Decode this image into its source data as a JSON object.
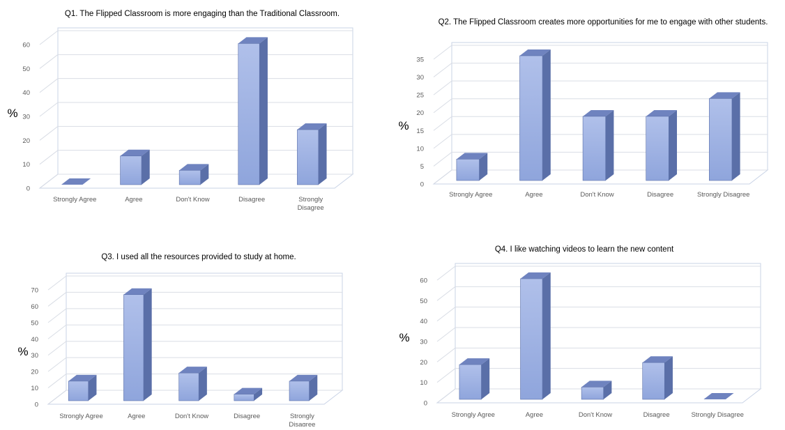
{
  "colors": {
    "bar_front": "#8fa5dc",
    "bar_front_light": "#b0c0ea",
    "bar_side": "#5a6fa8",
    "bar_top": "#6f83bf",
    "grid": "#d9dde5",
    "frame": "#c9d3e6",
    "text": "#595959",
    "title": "#222222"
  },
  "chart_data": [
    {
      "type": "bar",
      "title": "Q1. The Flipped Classroom is more engaging than the Traditional Classroom.",
      "ylabel": "%",
      "categories": [
        "Strongly Agree",
        "Agree",
        "Don't Know",
        "Disagree",
        "Strongly Disagree"
      ],
      "values": [
        0,
        12,
        6,
        59,
        23
      ],
      "ylim": [
        0,
        60
      ],
      "yticks": [
        0,
        10,
        20,
        30,
        40,
        50,
        60
      ],
      "grid": true,
      "three_d": true
    },
    {
      "type": "bar",
      "title": "Q2. The Flipped Classroom creates more opportunities for me to engage with other students.",
      "ylabel": "%",
      "categories": [
        "Strongly Agree",
        "Agree",
        "Don't Know",
        "Disagree",
        "Strongly Disagree"
      ],
      "values": [
        6,
        35,
        18,
        18,
        23
      ],
      "ylim": [
        0,
        35
      ],
      "yticks": [
        0,
        5,
        10,
        15,
        20,
        25,
        30,
        35
      ],
      "grid": true,
      "three_d": true
    },
    {
      "type": "bar",
      "title": "Q3. I used all the resources provided to study at home.",
      "ylabel": "%",
      "categories": [
        "Strongly Agree",
        "Agree",
        "Don't Know",
        "Disagree",
        "Strongly Disagree"
      ],
      "values": [
        12,
        65,
        17,
        4,
        12
      ],
      "ylim": [
        0,
        70
      ],
      "yticks": [
        0,
        10,
        20,
        30,
        40,
        50,
        60,
        70
      ],
      "grid": true,
      "three_d": true
    },
    {
      "type": "bar",
      "title": "Q4.  I like watching videos to learn the new content",
      "ylabel": "%",
      "categories": [
        "Strongly Agree",
        "Agree",
        "Don't Know",
        "Disagree",
        "Strongly Disagree"
      ],
      "values": [
        17,
        59,
        6,
        18,
        0
      ],
      "ylim": [
        0,
        60
      ],
      "yticks": [
        0,
        10,
        20,
        30,
        40,
        50,
        60
      ],
      "grid": true,
      "three_d": true
    }
  ]
}
